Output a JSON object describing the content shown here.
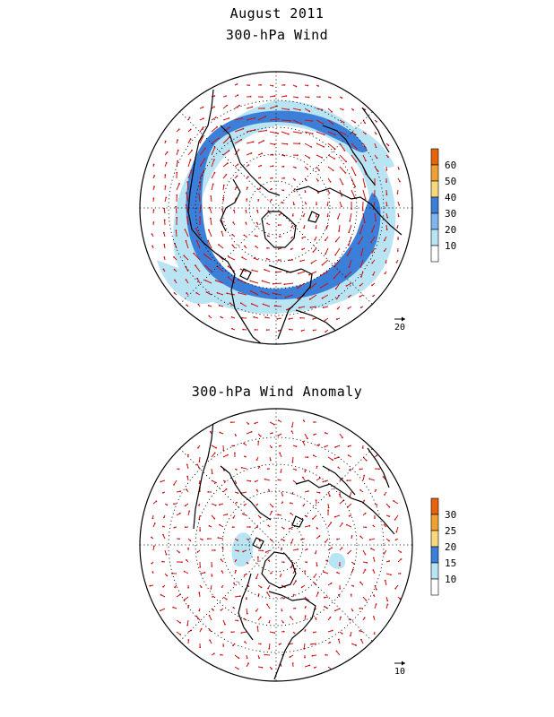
{
  "title_main": "August 2011",
  "panels": [
    {
      "title": "300-hPa Wind",
      "legend_ticks": [
        "60",
        "50",
        "40",
        "30",
        "20",
        "10"
      ],
      "legend_colors": [
        "#e8620a",
        "#f0a030",
        "#f8d878",
        "#3b7fd9",
        "#7fb4ee",
        "#b8e4f4",
        "#ffffff"
      ],
      "reference_vector_label": "20"
    },
    {
      "title": "300-hPa Wind Anomaly",
      "legend_ticks": [
        "30",
        "25",
        "20",
        "15",
        "10"
      ],
      "legend_colors": [
        "#e8620a",
        "#f0a030",
        "#f8d878",
        "#3b7fd9",
        "#b8e4f4",
        "#ffffff"
      ],
      "reference_vector_label": "10"
    }
  ],
  "colors": {
    "jet_light": "#b8e4f4",
    "jet_dark": "#3b7fd9",
    "vector": "#cc1111",
    "coast": "#000000",
    "grid": "#000000"
  }
}
